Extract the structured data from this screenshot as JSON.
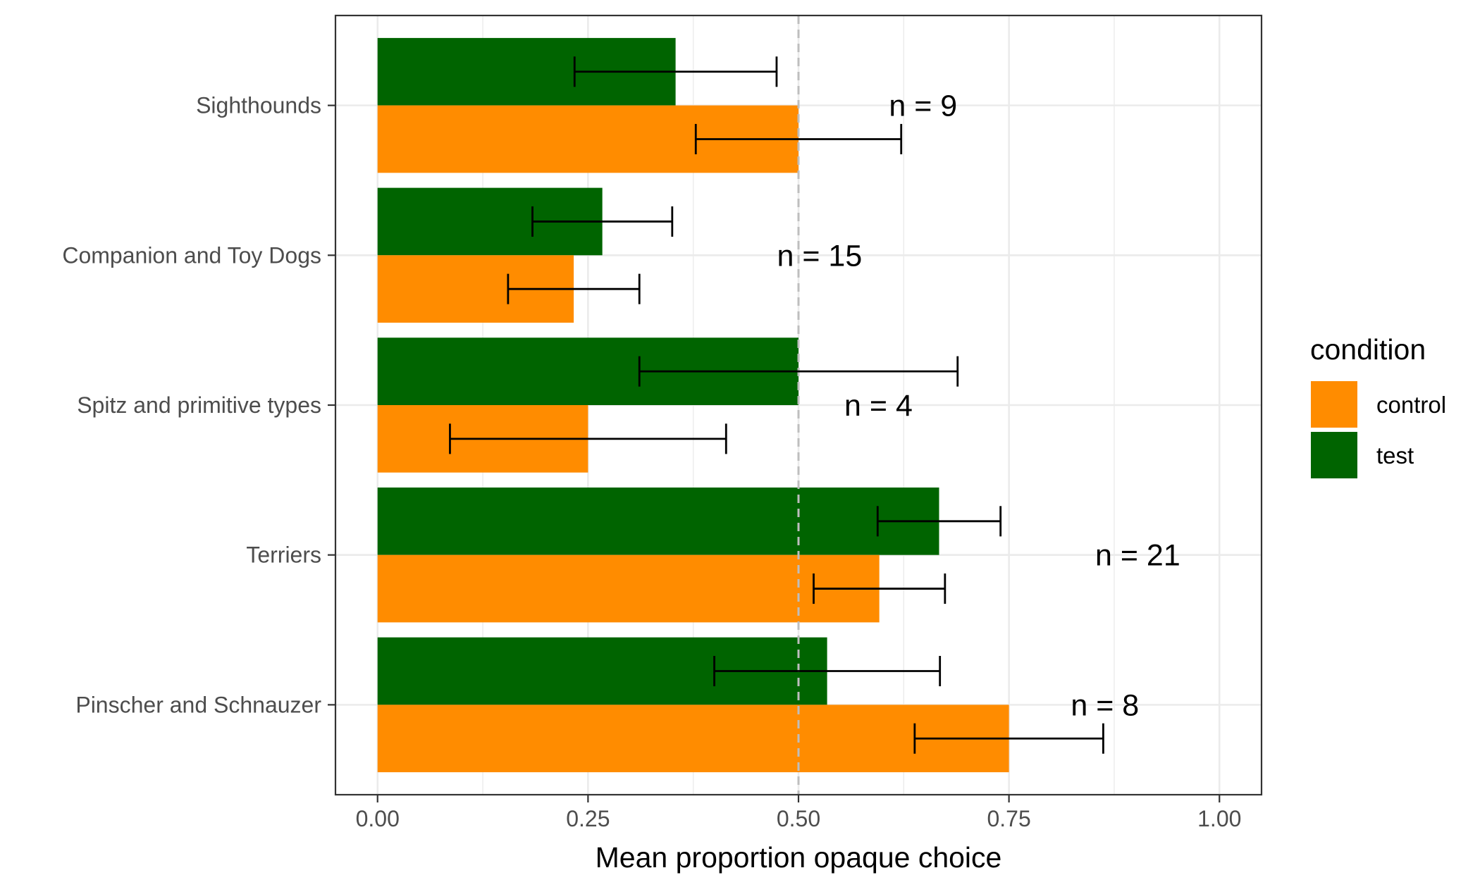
{
  "chart_data": {
    "type": "bar",
    "orientation": "horizontal",
    "title": "",
    "xlabel": "Mean proportion opaque choice",
    "ylabel": "",
    "xlim": [
      -0.05,
      1.05
    ],
    "x_ticks": [
      0,
      0.25,
      0.5,
      0.75,
      1
    ],
    "x_tick_labels": [
      "0.00",
      "0.25",
      "0.50",
      "0.75",
      "1.00"
    ],
    "grid": true,
    "reference_line": 0.5,
    "legend": {
      "title": "condition",
      "position": "right"
    },
    "categories": [
      "Sighthounds",
      "Companion and Toy Dogs",
      "Spitz and primitive types",
      "Terriers",
      "Pinscher and Schnauzer"
    ],
    "series": [
      {
        "name": "test",
        "color": "#006400",
        "values": [
          0.354,
          0.267,
          0.5,
          0.667,
          0.534
        ],
        "error_low": [
          0.234,
          0.184,
          0.311,
          0.594,
          0.4
        ],
        "error_high": [
          0.474,
          0.35,
          0.689,
          0.74,
          0.668
        ]
      },
      {
        "name": "control",
        "color": "#FF8C00",
        "values": [
          0.5,
          0.233,
          0.25,
          0.596,
          0.75
        ],
        "error_low": [
          0.378,
          0.155,
          0.086,
          0.518,
          0.638
        ],
        "error_high": [
          0.622,
          0.311,
          0.414,
          0.674,
          0.862
        ]
      }
    ],
    "annotations": [
      {
        "category": "Sighthounds",
        "text": "n = 9",
        "x": 0.648
      },
      {
        "category": "Companion and Toy Dogs",
        "text": "n = 15",
        "x": 0.525
      },
      {
        "category": "Spitz and primitive types",
        "text": "n = 4",
        "x": 0.595
      },
      {
        "category": "Terriers",
        "text": "n = 21",
        "x": 0.903
      },
      {
        "category": "Pinscher and Schnauzer",
        "text": "n = 8",
        "x": 0.864
      }
    ]
  }
}
